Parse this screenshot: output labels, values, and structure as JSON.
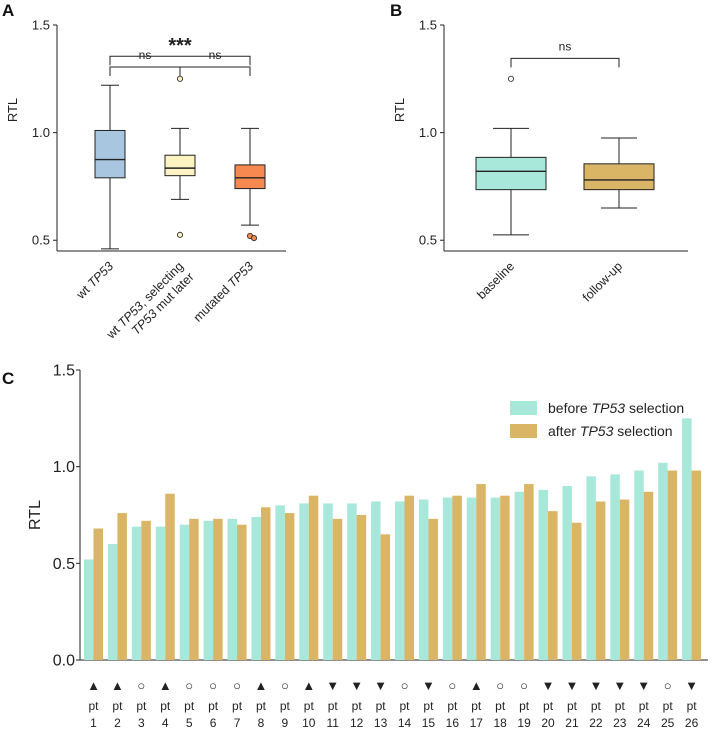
{
  "panel_labels": {
    "a": "A",
    "b": "B",
    "c": "C"
  },
  "chart_data": [
    {
      "panel": "A",
      "type": "box",
      "ylabel": "RTL",
      "ylim": [
        0.45,
        1.5
      ],
      "yticks": [
        0.5,
        1.0,
        1.5
      ],
      "ytick_labels": [
        "0.5",
        "1.0",
        "1.5"
      ],
      "categories": [
        {
          "lines": [
            [
              {
                "t": "wt ",
                "i": false
              },
              {
                "t": "TP53",
                "i": true
              }
            ]
          ]
        },
        {
          "lines": [
            [
              {
                "t": "wt ",
                "i": false
              },
              {
                "t": "TP53",
                "i": true
              },
              {
                "t": ", selecting",
                "i": false
              }
            ],
            [
              {
                "t": "TP53",
                "i": true
              },
              {
                "t": " mut later",
                "i": false
              }
            ]
          ]
        },
        {
          "lines": [
            [
              {
                "t": "mutated ",
                "i": false
              },
              {
                "t": "TP53",
                "i": true
              }
            ]
          ]
        }
      ],
      "boxes": [
        {
          "min": 0.46,
          "q1": 0.79,
          "median": 0.875,
          "q3": 1.01,
          "max": 1.22,
          "outliers": [],
          "color": "#a8c6e0",
          "outlier_color": "#ffffff"
        },
        {
          "min": 0.69,
          "q1": 0.8,
          "median": 0.835,
          "q3": 0.895,
          "max": 1.02,
          "outliers": [
            1.25,
            0.525
          ],
          "color": "#fbf3c2",
          "outlier_color": "#fbf3c2"
        },
        {
          "min": 0.57,
          "q1": 0.74,
          "median": 0.79,
          "q3": 0.85,
          "max": 1.02,
          "outliers": [
            0.52,
            0.51
          ],
          "color": "#f5894f",
          "outlier_color": "#f5894f"
        }
      ],
      "annotations": [
        {
          "text": "***",
          "from": 0,
          "to": 2,
          "level": 1.355,
          "bold": true
        },
        {
          "text": "ns",
          "from": 0,
          "to": 1,
          "level": 1.305,
          "bold": false
        },
        {
          "text": "ns",
          "from": 1,
          "to": 2,
          "level": 1.305,
          "bold": false
        }
      ]
    },
    {
      "panel": "B",
      "type": "box",
      "ylabel": "RTL",
      "ylim": [
        0.45,
        1.5
      ],
      "yticks": [
        0.5,
        1.0,
        1.5
      ],
      "ytick_labels": [
        "0.5",
        "1.0",
        "1.5"
      ],
      "categories": [
        {
          "lines": [
            [
              {
                "t": "baseline",
                "i": false
              }
            ]
          ]
        },
        {
          "lines": [
            [
              {
                "t": "follow-up",
                "i": false
              }
            ]
          ]
        }
      ],
      "boxes": [
        {
          "min": 0.525,
          "q1": 0.735,
          "median": 0.82,
          "q3": 0.885,
          "max": 1.02,
          "outliers": [
            1.25
          ],
          "color": "#a8e8da",
          "outlier_color": "#ffffff"
        },
        {
          "min": 0.65,
          "q1": 0.735,
          "median": 0.78,
          "q3": 0.855,
          "max": 0.975,
          "outliers": [],
          "color": "#dbb566",
          "outlier_color": "#ffffff"
        }
      ],
      "annotations": [
        {
          "text": "ns",
          "from": 0,
          "to": 1,
          "level": 1.345,
          "bold": false
        }
      ]
    },
    {
      "panel": "C",
      "type": "bar",
      "ylabel": "RTL",
      "ylim": [
        0.0,
        1.5
      ],
      "yticks": [
        0.0,
        0.5,
        1.0,
        1.5
      ],
      "ytick_labels": [
        "0.0",
        "0.5",
        "1.0",
        "1.5"
      ],
      "legend_position": "top-right",
      "series": [
        {
          "name": "before TP53 selection",
          "label_parts": [
            {
              "t": "before ",
              "i": false
            },
            {
              "t": "TP53",
              "i": true
            },
            {
              "t": " selection",
              "i": false
            }
          ],
          "color": "#a8e8da",
          "values": [
            0.52,
            0.6,
            0.69,
            0.69,
            0.7,
            0.72,
            0.73,
            0.74,
            0.8,
            0.81,
            0.81,
            0.81,
            0.82,
            0.82,
            0.83,
            0.84,
            0.84,
            0.84,
            0.87,
            0.88,
            0.9,
            0.95,
            0.96,
            0.98,
            1.02,
            1.25
          ]
        },
        {
          "name": "after TP53 selection",
          "label_parts": [
            {
              "t": "after ",
              "i": false
            },
            {
              "t": "TP53",
              "i": true
            },
            {
              "t": " selection",
              "i": false
            }
          ],
          "color": "#dbb566",
          "values": [
            0.68,
            0.76,
            0.72,
            0.86,
            0.73,
            0.73,
            0.7,
            0.79,
            0.76,
            0.85,
            0.73,
            0.75,
            0.65,
            0.85,
            0.73,
            0.85,
            0.91,
            0.85,
            0.91,
            0.77,
            0.71,
            0.82,
            0.83,
            0.87,
            0.98,
            0.98
          ]
        }
      ],
      "pt_prefix": "pt",
      "patients": [
        "1",
        "2",
        "3",
        "4",
        "5",
        "6",
        "7",
        "8",
        "9",
        "10",
        "11",
        "12",
        "13",
        "14",
        "15",
        "16",
        "17",
        "18",
        "19",
        "20",
        "21",
        "22",
        "23",
        "24",
        "25",
        "26"
      ],
      "markers": [
        "▲",
        "▲",
        "○",
        "▲",
        "○",
        "○",
        "○",
        "▲",
        "○",
        "▲",
        "▼",
        "▼",
        "▼",
        "○",
        "▼",
        "○",
        "▲",
        "○",
        "○",
        "▼",
        "▼",
        "▼",
        "▼",
        "▼",
        "○",
        "▼"
      ]
    }
  ]
}
